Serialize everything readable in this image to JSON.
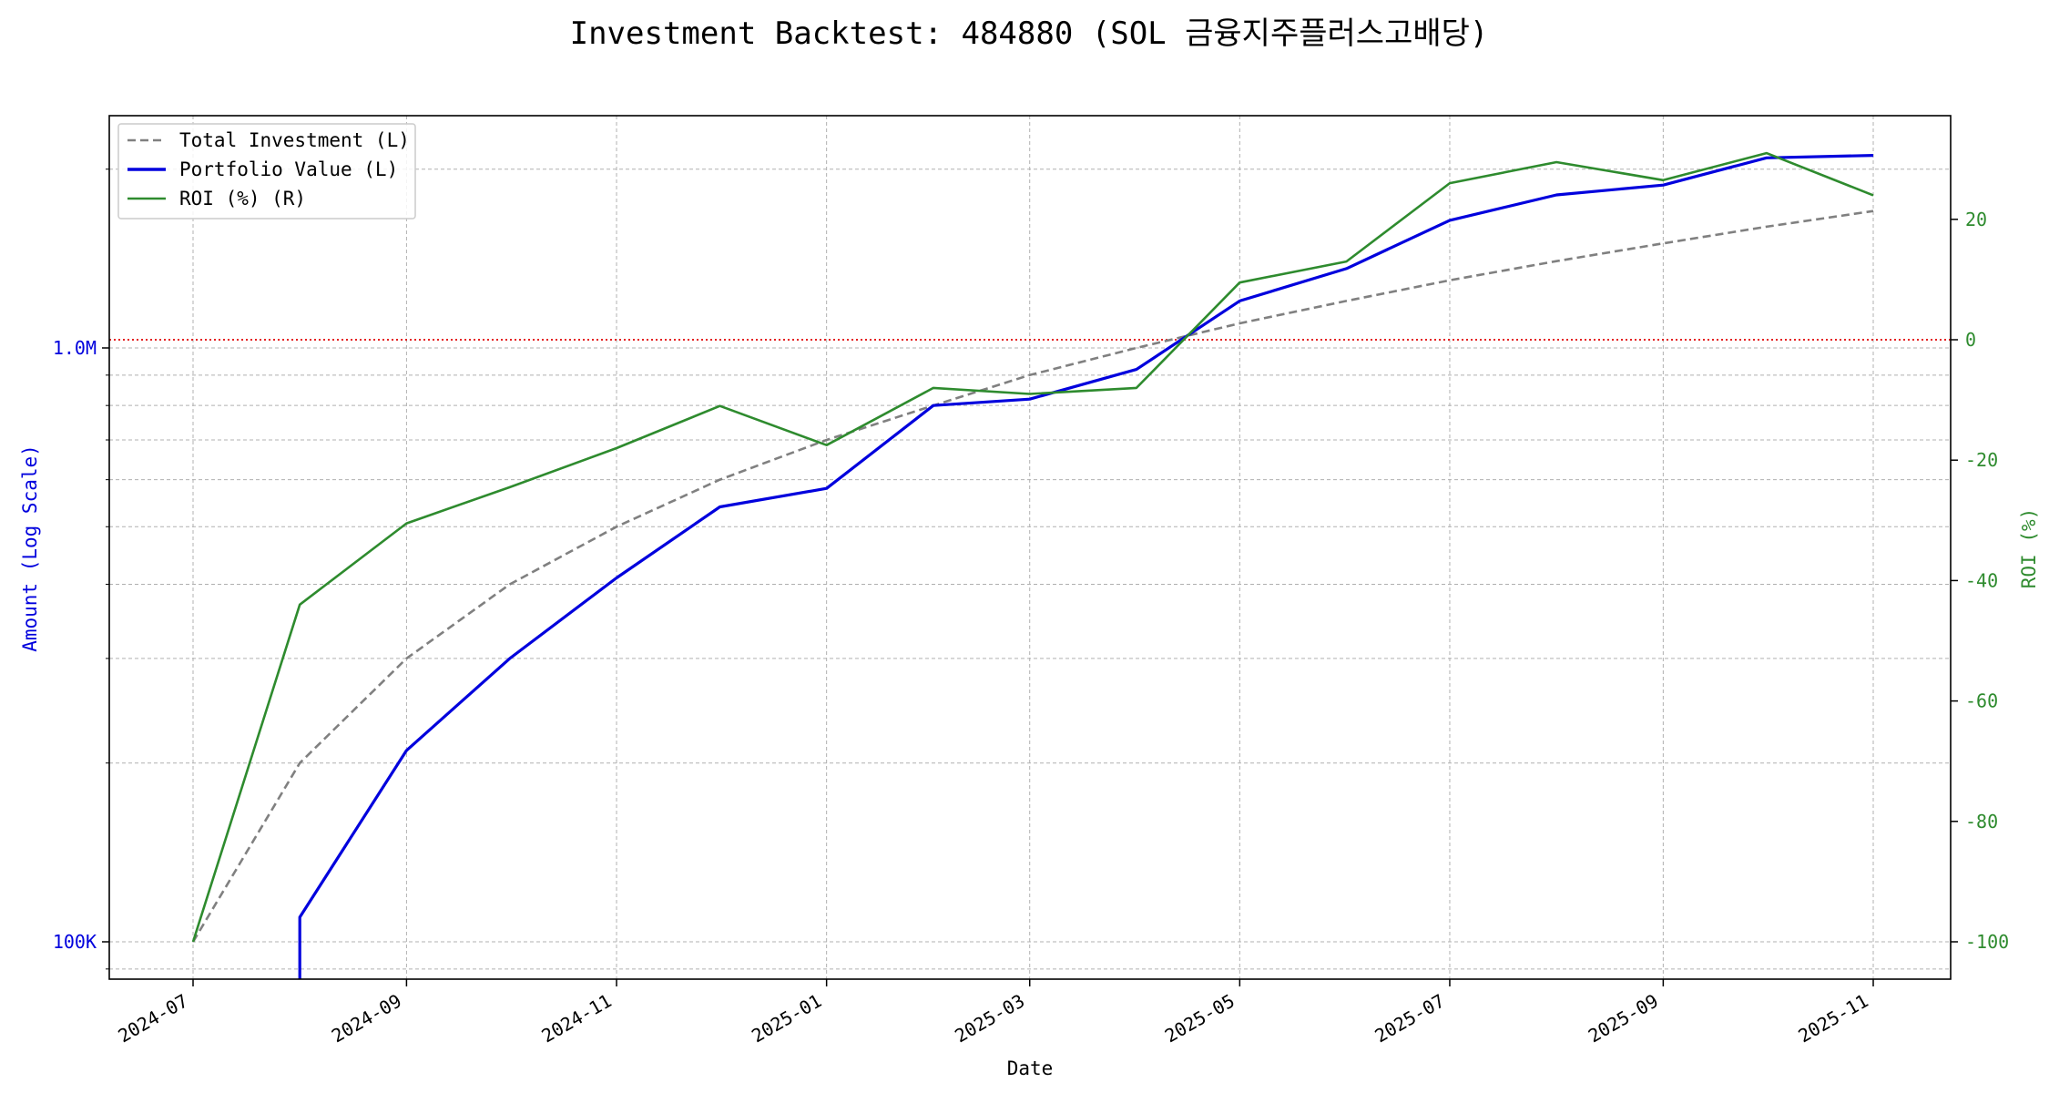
{
  "chart_data": {
    "type": "line",
    "title": "Investment Backtest: 484880 (SOL 금융지주플러스고배당)",
    "xlabel": "Date",
    "ylabel_left": "Amount (Log Scale)",
    "ylabel_right": "ROI (%)",
    "left_axis_scale": "log",
    "x_tick_labels": [
      "2024-07",
      "2024-09",
      "2024-11",
      "2025-01",
      "2025-03",
      "2025-05",
      "2025-07",
      "2025-09",
      "2025-11"
    ],
    "left_tick_labels": [
      "100K",
      "1.0M"
    ],
    "right_ticks": [
      -100,
      -80,
      -60,
      -40,
      -20,
      0,
      20
    ],
    "right_ylim": [
      -105,
      35
    ],
    "grid": true,
    "legend_position": "upper-left",
    "dates": [
      "2024-07-01",
      "2024-08-01",
      "2024-09-01",
      "2024-10-01",
      "2024-11-01",
      "2024-12-01",
      "2025-01-01",
      "2025-02-01",
      "2025-03-01",
      "2025-04-01",
      "2025-05-01",
      "2025-06-01",
      "2025-07-01",
      "2025-08-01",
      "2025-09-01",
      "2025-10-01",
      "2025-11-01"
    ],
    "series": [
      {
        "name": "Total Investment (L)",
        "axis": "left",
        "color": "#808080",
        "dash": true,
        "values": [
          100000,
          200000,
          300000,
          400000,
          500000,
          600000,
          700000,
          800000,
          900000,
          1000000,
          1100000,
          1200000,
          1300000,
          1400000,
          1500000,
          1600000,
          1700000
        ]
      },
      {
        "name": "Portfolio Value (L)",
        "axis": "left",
        "color": "#0000dd",
        "dash": false,
        "values": [
          null,
          110000,
          210000,
          300000,
          410000,
          540000,
          580000,
          800000,
          820000,
          920000,
          1200000,
          1360000,
          1640000,
          1810000,
          1880000,
          2090000,
          2110000
        ]
      },
      {
        "name": "ROI (%) (R)",
        "axis": "right",
        "color": "#2e8b2e",
        "dash": false,
        "values": [
          -100,
          -44,
          -30.5,
          -24.5,
          -18,
          -11,
          -17.5,
          -8,
          -9,
          -8,
          9.5,
          13,
          26,
          29.5,
          26.5,
          31,
          24
        ]
      }
    ]
  }
}
